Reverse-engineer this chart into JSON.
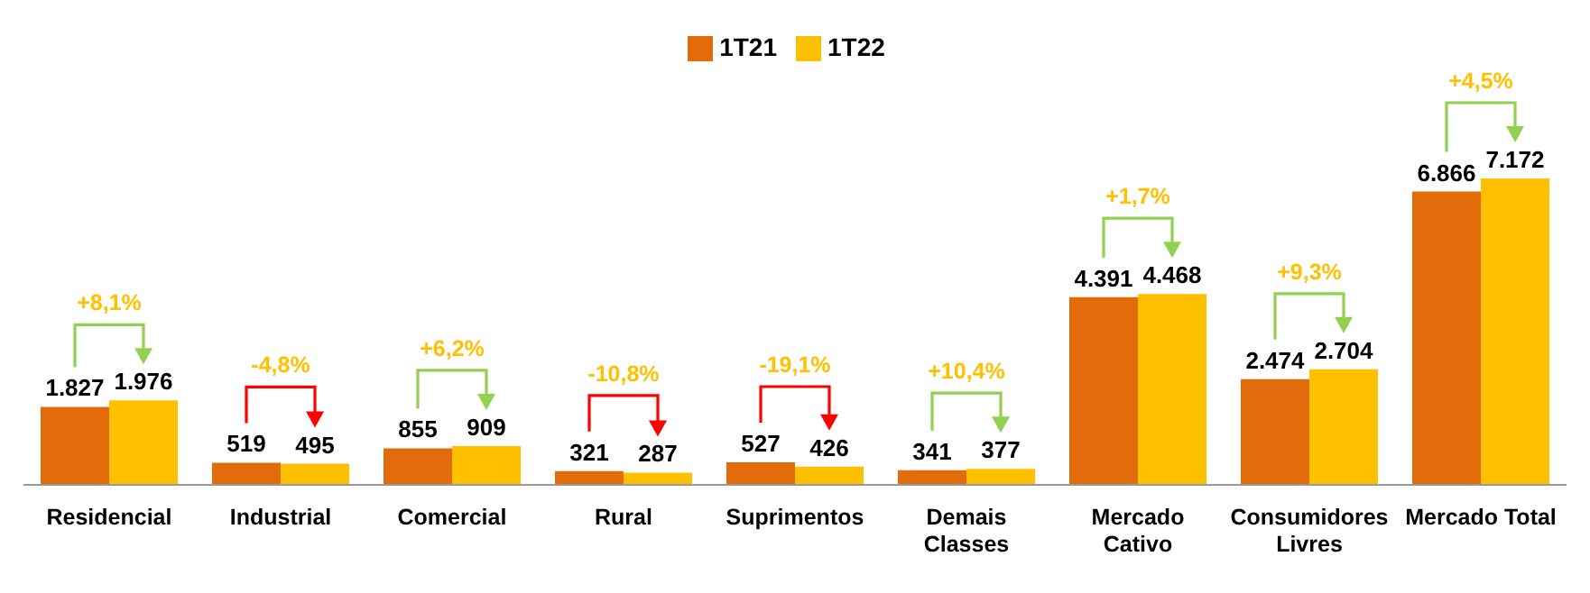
{
  "chart_data": {
    "type": "bar",
    "categories": [
      "Residencial",
      "Industrial",
      "Comercial",
      "Rural",
      "Suprimentos",
      "Demais Classes",
      "Mercado Cativo",
      "Consumidores Livres",
      "Mercado Total"
    ],
    "series": [
      {
        "name": "1T21",
        "color": "#e36c0a",
        "values": [
          1827,
          519,
          855,
          321,
          527,
          341,
          4391,
          2474,
          6866
        ],
        "value_labels": [
          "1.827",
          "519",
          "855",
          "321",
          "527",
          "341",
          "4.391",
          "2.474",
          "6.866"
        ]
      },
      {
        "name": "1T22",
        "color": "#ffc000",
        "values": [
          1976,
          495,
          909,
          287,
          426,
          377,
          4468,
          2704,
          7172
        ],
        "value_labels": [
          "1.976",
          "495",
          "909",
          "287",
          "426",
          "377",
          "4.468",
          "2.704",
          "7.172"
        ]
      }
    ],
    "annotations": [
      "+8,1%",
      "-4,8%",
      "+6,2%",
      "-10,8%",
      "-19,1%",
      "+10,4%",
      "+1,7%",
      "+9,3%",
      "+4,5%"
    ],
    "legend": "top"
  }
}
